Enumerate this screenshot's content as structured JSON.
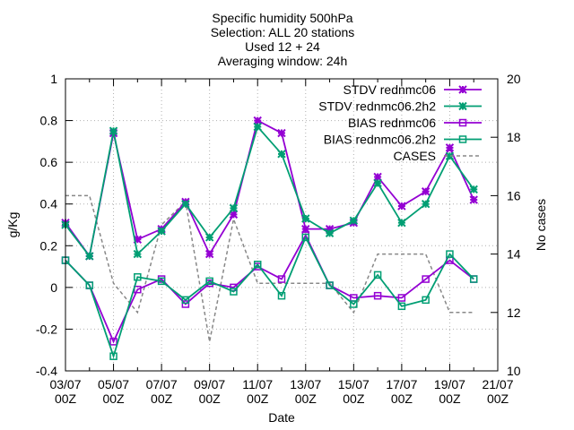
{
  "chart_data": {
    "type": "line",
    "title_lines": [
      "Specific humidity 500hPa",
      "Selection: ALL      20 stations",
      "Used 12 + 24",
      "Averaging window: 24h"
    ],
    "xlabel": "Date",
    "ylabel": "g/Kg",
    "y2label": "No cases",
    "ylim": [
      -0.4,
      1.0
    ],
    "yticks": [
      "-0.4",
      "-0.2",
      "0",
      "0.2",
      "0.4",
      "0.6",
      "0.8",
      "1"
    ],
    "y2lim": [
      10,
      20
    ],
    "y2ticks": [
      "10",
      "12",
      "14",
      "16",
      "18",
      "20"
    ],
    "xlim": [
      0,
      18
    ],
    "xticks": [
      {
        "x": 0,
        "date": "03/07",
        "hour": "00Z"
      },
      {
        "x": 2,
        "date": "05/07",
        "hour": "00Z"
      },
      {
        "x": 4,
        "date": "07/07",
        "hour": "00Z"
      },
      {
        "x": 6,
        "date": "09/07",
        "hour": "00Z"
      },
      {
        "x": 8,
        "date": "11/07",
        "hour": "00Z"
      },
      {
        "x": 10,
        "date": "13/07",
        "hour": "00Z"
      },
      {
        "x": 12,
        "date": "15/07",
        "hour": "00Z"
      },
      {
        "x": 14,
        "date": "17/07",
        "hour": "00Z"
      },
      {
        "x": 16,
        "date": "19/07",
        "hour": "00Z"
      },
      {
        "x": 18,
        "date": "21/07",
        "hour": "00Z"
      }
    ],
    "grid": true,
    "legend_position": "top-right",
    "x": [
      0,
      1,
      2,
      3,
      4,
      5,
      6,
      7,
      8,
      9,
      10,
      11,
      12,
      13,
      14,
      15,
      16,
      17
    ],
    "series": [
      {
        "name": "STDV rednmc06",
        "color": "#9400d3",
        "marker": "star",
        "axis": "y",
        "values": [
          0.31,
          0.15,
          0.74,
          0.23,
          0.28,
          0.41,
          0.16,
          0.35,
          0.8,
          0.74,
          0.28,
          0.28,
          0.31,
          0.53,
          0.39,
          0.46,
          0.67,
          0.42
        ]
      },
      {
        "name": "STDV rednmc06.2h2",
        "color": "#009e73",
        "marker": "star",
        "axis": "y",
        "values": [
          0.3,
          0.15,
          0.75,
          0.16,
          0.27,
          0.4,
          0.24,
          0.38,
          0.77,
          0.64,
          0.33,
          0.26,
          0.32,
          0.5,
          0.31,
          0.4,
          0.63,
          0.47
        ]
      },
      {
        "name": "BIAS rednmc06",
        "color": "#9400d3",
        "marker": "square",
        "axis": "y",
        "values": [
          0.13,
          0.01,
          -0.26,
          -0.01,
          0.04,
          -0.08,
          0.02,
          0.0,
          0.1,
          0.04,
          0.25,
          0.01,
          -0.05,
          -0.04,
          -0.05,
          0.04,
          0.13,
          0.04
        ]
      },
      {
        "name": "BIAS rednmc06.2h2",
        "color": "#009e73",
        "marker": "square",
        "axis": "y",
        "values": [
          0.13,
          0.01,
          -0.33,
          0.05,
          0.03,
          -0.06,
          0.03,
          -0.02,
          0.11,
          -0.04,
          0.24,
          0.01,
          -0.08,
          0.06,
          -0.09,
          -0.06,
          0.16,
          0.04
        ]
      },
      {
        "name": "CASES",
        "color": "#888888",
        "marker": "none",
        "dashed": true,
        "axis": "y2",
        "values": [
          16,
          16,
          13,
          12,
          15,
          15.8,
          11,
          15.2,
          13,
          13,
          13,
          13,
          12,
          14,
          14,
          14,
          12,
          12
        ]
      }
    ]
  }
}
